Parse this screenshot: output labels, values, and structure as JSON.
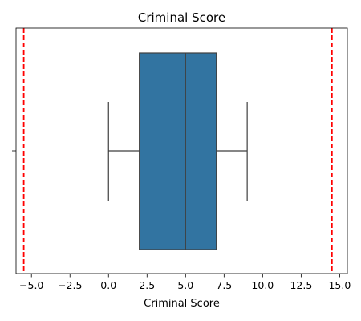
{
  "chart_data": {
    "type": "box",
    "title": "Criminal Score",
    "xlabel": "Criminal Score",
    "ylabel": "",
    "xlim": [
      -6.0,
      15.5
    ],
    "x_ticks": [
      -5.0,
      -2.5,
      0.0,
      2.5,
      5.0,
      7.5,
      10.0,
      12.5,
      15.0
    ],
    "x_tick_labels": [
      "−5.0",
      "−2.5",
      "0.0",
      "2.5",
      "5.0",
      "7.5",
      "10.0",
      "12.5",
      "15.0"
    ],
    "orientation": "horizontal",
    "box": {
      "whisker_low": 0.0,
      "q1": 2.0,
      "median": 5.0,
      "q3": 7.0,
      "whisker_high": 9.0
    },
    "reference_lines": [
      -5.5,
      14.5
    ],
    "grid": false,
    "colors": {
      "box_fill": "#3274a1",
      "box_edge": "#3f3f3f",
      "reference_line": "#ff0000"
    }
  }
}
